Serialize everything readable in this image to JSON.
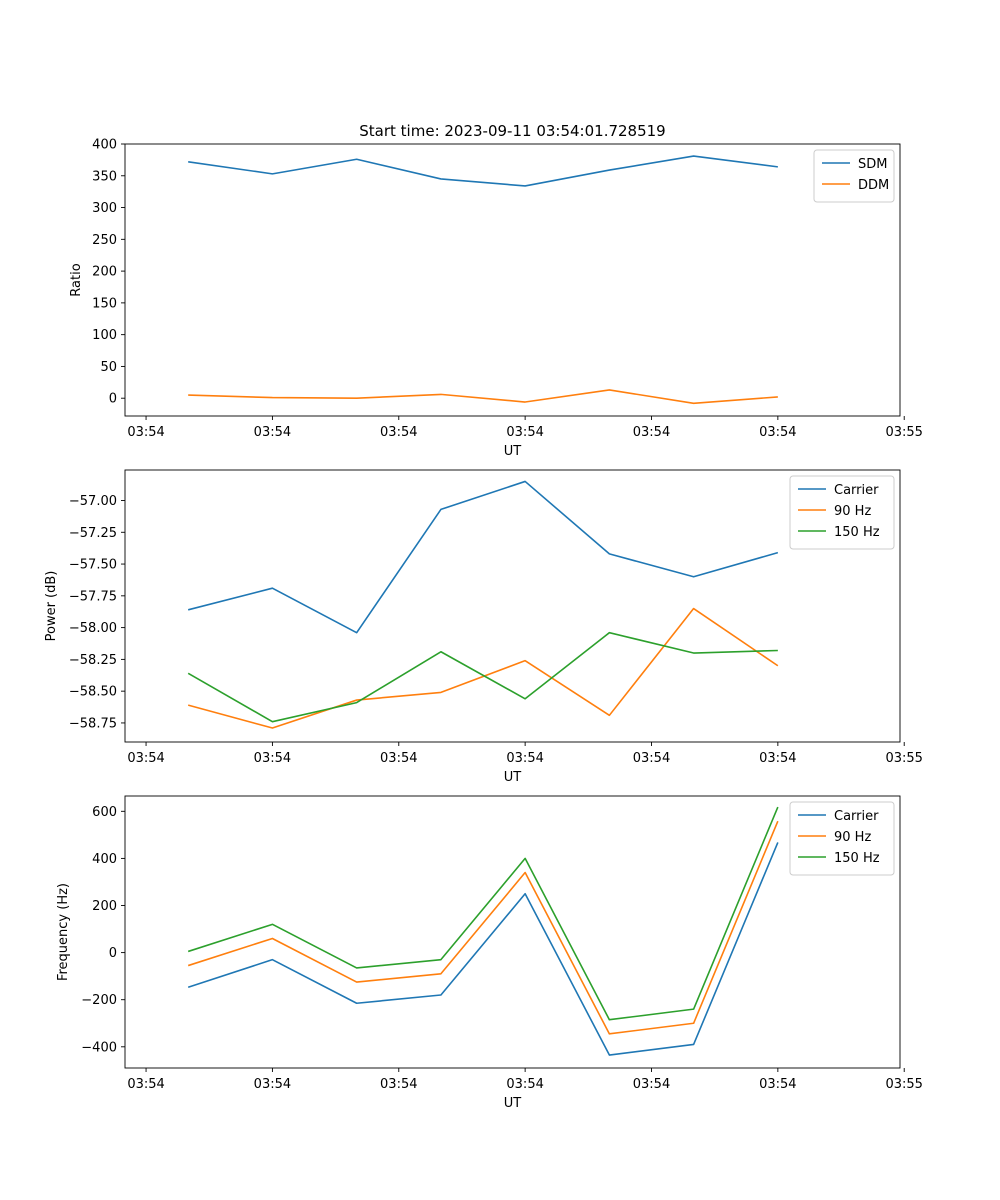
{
  "figure": {
    "title": "Start time: 2023-09-11 03:54:01.728519"
  },
  "colors": {
    "blue": "#1f77b4",
    "orange": "#ff7f0e",
    "green": "#2ca02c"
  },
  "chart_data": [
    {
      "type": "line",
      "title": "Start time: 2023-09-11 03:54:01.728519",
      "xlabel": "UT",
      "ylabel": "Ratio",
      "xlim": [
        0,
        9.2
      ],
      "x": [
        0.75,
        1.75,
        2.75,
        3.75,
        4.75,
        5.75,
        6.75,
        7.75
      ],
      "xticks": [
        0.25,
        1.75,
        3.25,
        4.75,
        6.25,
        7.75,
        9.25
      ],
      "xtick_labels": [
        "03:54",
        "03:54",
        "03:54",
        "03:54",
        "03:54",
        "03:54",
        "03:55"
      ],
      "ylim": [
        -28,
        400
      ],
      "yticks": [
        0,
        50,
        100,
        150,
        200,
        250,
        300,
        350,
        400
      ],
      "ytick_labels": [
        "0",
        "50",
        "100",
        "150",
        "200",
        "250",
        "300",
        "350",
        "400"
      ],
      "legend_position": "upper-right",
      "series": [
        {
          "name": "SDM",
          "color": "#1f77b4",
          "values": [
            372,
            353,
            376,
            345,
            334,
            359,
            381,
            364
          ]
        },
        {
          "name": "DDM",
          "color": "#ff7f0e",
          "values": [
            5,
            1,
            0,
            6,
            -6,
            13,
            -8,
            2
          ]
        }
      ]
    },
    {
      "type": "line",
      "title": "",
      "xlabel": "UT",
      "ylabel": "Power (dB)",
      "xlim": [
        0,
        9.2
      ],
      "x": [
        0.75,
        1.75,
        2.75,
        3.75,
        4.75,
        5.75,
        6.75,
        7.75
      ],
      "xticks": [
        0.25,
        1.75,
        3.25,
        4.75,
        6.25,
        7.75,
        9.25
      ],
      "xtick_labels": [
        "03:54",
        "03:54",
        "03:54",
        "03:54",
        "03:54",
        "03:54",
        "03:55"
      ],
      "ylim": [
        -58.9,
        -56.76
      ],
      "yticks": [
        -58.75,
        -58.5,
        -58.25,
        -58.0,
        -57.75,
        -57.5,
        -57.25,
        -57.0
      ],
      "ytick_labels": [
        "−58.75",
        "−58.50",
        "−58.25",
        "−58.00",
        "−57.75",
        "−57.50",
        "−57.25",
        "−57.00"
      ],
      "legend_position": "upper-right",
      "series": [
        {
          "name": "Carrier",
          "color": "#1f77b4",
          "values": [
            -57.86,
            -57.69,
            -58.04,
            -57.07,
            -56.85,
            -57.42,
            -57.6,
            -57.41
          ]
        },
        {
          "name": "90 Hz",
          "color": "#ff7f0e",
          "values": [
            -58.61,
            -58.79,
            -58.57,
            -58.51,
            -58.26,
            -58.69,
            -57.85,
            -58.3
          ]
        },
        {
          "name": "150 Hz",
          "color": "#2ca02c",
          "values": [
            -58.36,
            -58.74,
            -58.59,
            -58.19,
            -58.56,
            -58.04,
            -58.2,
            -58.18
          ]
        }
      ]
    },
    {
      "type": "line",
      "title": "",
      "xlabel": "UT",
      "ylabel": "Frequency (Hz)",
      "xlim": [
        0,
        9.2
      ],
      "x": [
        0.75,
        1.75,
        2.75,
        3.75,
        4.75,
        5.75,
        6.75,
        7.75
      ],
      "xticks": [
        0.25,
        1.75,
        3.25,
        4.75,
        6.25,
        7.75,
        9.25
      ],
      "xtick_labels": [
        "03:54",
        "03:54",
        "03:54",
        "03:54",
        "03:54",
        "03:54",
        "03:55"
      ],
      "ylim": [
        -490,
        665
      ],
      "yticks": [
        -400,
        -200,
        0,
        200,
        400,
        600
      ],
      "ytick_labels": [
        "−400",
        "−200",
        "0",
        "200",
        "400",
        "600"
      ],
      "legend_position": "upper-right",
      "series": [
        {
          "name": "Carrier",
          "color": "#1f77b4",
          "values": [
            -147,
            -30,
            -215,
            -180,
            250,
            -435,
            -390,
            468
          ]
        },
        {
          "name": "90 Hz",
          "color": "#ff7f0e",
          "values": [
            -55,
            60,
            -125,
            -90,
            340,
            -345,
            -300,
            558
          ]
        },
        {
          "name": "150 Hz",
          "color": "#2ca02c",
          "values": [
            5,
            120,
            -65,
            -30,
            400,
            -285,
            -240,
            618
          ]
        }
      ]
    }
  ]
}
